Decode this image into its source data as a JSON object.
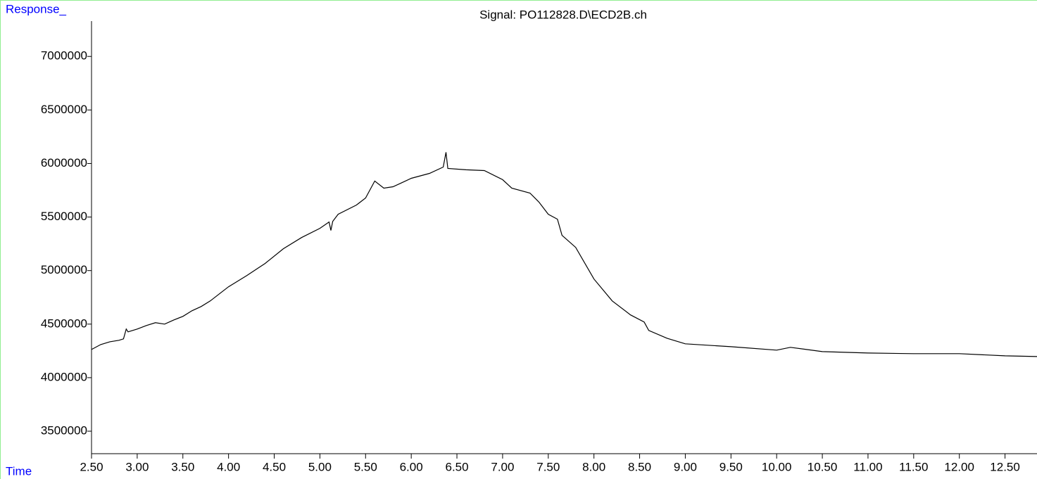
{
  "chart_data": {
    "type": "line",
    "title": "Signal: PO112828.D\\ECD2B.ch",
    "y_label": "Response_",
    "x_label": "Time",
    "x": [
      2.5,
      2.6,
      2.7,
      2.8,
      2.85,
      2.88,
      2.9,
      3.0,
      3.1,
      3.2,
      3.3,
      3.4,
      3.5,
      3.6,
      3.7,
      3.8,
      3.9,
      4.0,
      4.2,
      4.4,
      4.6,
      4.8,
      5.0,
      5.1,
      5.12,
      5.14,
      5.2,
      5.4,
      5.5,
      5.6,
      5.7,
      5.8,
      5.9,
      6.0,
      6.2,
      6.35,
      6.38,
      6.4,
      6.6,
      6.8,
      7.0,
      7.1,
      7.3,
      7.4,
      7.5,
      7.6,
      7.65,
      7.8,
      8.0,
      8.2,
      8.4,
      8.55,
      8.6,
      8.8,
      9.0,
      9.5,
      10.0,
      10.15,
      10.5,
      11.0,
      11.5,
      12.0,
      12.5,
      12.85
    ],
    "series": [
      {
        "name": "ECD2B",
        "color": "#000000",
        "values": [
          4263000,
          4309000,
          4335000,
          4349000,
          4362000,
          4454000,
          4428000,
          4454000,
          4487000,
          4513000,
          4500000,
          4539000,
          4572000,
          4625000,
          4664000,
          4717000,
          4783000,
          4849000,
          4954000,
          5066000,
          5204000,
          5309000,
          5395000,
          5454000,
          5375000,
          5460000,
          5526000,
          5612000,
          5678000,
          5836000,
          5770000,
          5783000,
          5822000,
          5862000,
          5908000,
          5967000,
          6105000,
          5954000,
          5941000,
          5934000,
          5849000,
          5770000,
          5724000,
          5638000,
          5526000,
          5480000,
          5329000,
          5217000,
          4921000,
          4717000,
          4586000,
          4520000,
          4441000,
          4368000,
          4316000,
          4289000,
          4257000,
          4283000,
          4243000,
          4230000,
          4224000,
          4224000,
          4204000,
          4197000
        ]
      }
    ],
    "xlim": [
      2.5,
      12.85
    ],
    "ylim": [
      3290000,
      7330000
    ],
    "xticks": [
      {
        "value": 2.5,
        "label": "2.50"
      },
      {
        "value": 3.0,
        "label": "3.00"
      },
      {
        "value": 3.5,
        "label": "3.50"
      },
      {
        "value": 4.0,
        "label": "4.00"
      },
      {
        "value": 4.5,
        "label": "4.50"
      },
      {
        "value": 5.0,
        "label": "5.00"
      },
      {
        "value": 5.5,
        "label": "5.50"
      },
      {
        "value": 6.0,
        "label": "6.00"
      },
      {
        "value": 6.5,
        "label": "6.50"
      },
      {
        "value": 7.0,
        "label": "7.00"
      },
      {
        "value": 7.5,
        "label": "7.50"
      },
      {
        "value": 8.0,
        "label": "8.00"
      },
      {
        "value": 8.5,
        "label": "8.50"
      },
      {
        "value": 9.0,
        "label": "9.00"
      },
      {
        "value": 9.5,
        "label": "9.50"
      },
      {
        "value": 10.0,
        "label": "10.00"
      },
      {
        "value": 10.5,
        "label": "10.50"
      },
      {
        "value": 11.0,
        "label": "11.00"
      },
      {
        "value": 11.5,
        "label": "11.50"
      },
      {
        "value": 12.0,
        "label": "12.00"
      },
      {
        "value": 12.5,
        "label": "12.50"
      }
    ],
    "yticks": [
      3500000,
      4000000,
      4500000,
      5000000,
      5500000,
      6000000,
      6500000,
      7000000
    ]
  }
}
